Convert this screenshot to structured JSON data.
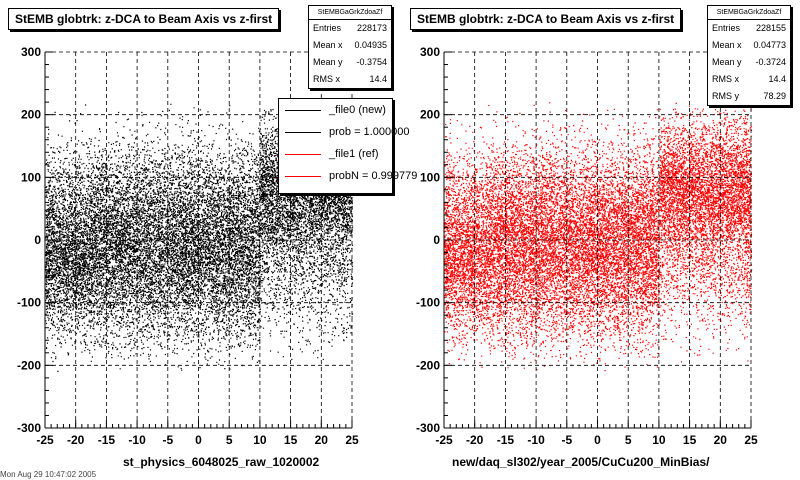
{
  "chart_data": [
    {
      "type": "scatter",
      "title": "StEMB globtrk: z-DCA to Beam Axis vs z-first",
      "xlabel": "st_physics_6048025_raw_1020002",
      "xlim": [
        -25,
        25
      ],
      "ylim": [
        -300,
        300
      ],
      "x_ticks": [
        "-25",
        "-20",
        "-15",
        "-10",
        "-5",
        "0",
        "5",
        "10",
        "15",
        "20",
        "25"
      ],
      "y_ticks": [
        "-300",
        "-200",
        "-100",
        "0",
        "100",
        "200",
        "300"
      ],
      "grid": true,
      "series": [
        {
          "name": "_file0 (new)",
          "color": "#000000"
        }
      ],
      "stats": {
        "header": "StEMBGaGrkZdoaZf",
        "rows": [
          {
            "label": "Entries",
            "value": "228173"
          },
          {
            "label": "Mean x",
            "value": "0.04935"
          },
          {
            "label": "Mean y",
            "value": "-0.3754"
          },
          {
            "label": "RMS x",
            "value": "14.4"
          }
        ]
      },
      "legend": [
        {
          "label": "_file0 (new)",
          "color": "#000000"
        },
        {
          "label": "prob = 1.000000",
          "color": "#000000"
        },
        {
          "label": "_file1 (ref)",
          "color": "#ff0000"
        },
        {
          "label": "probN = 0.999779",
          "color": "#ff0000"
        }
      ]
    },
    {
      "type": "scatter",
      "title": "StEMB globtrk: z-DCA to Beam Axis vs z-first",
      "xlabel": "new/daq_sl302/year_2005/CuCu200_MinBias/",
      "xlim": [
        -25,
        25
      ],
      "ylim": [
        -300,
        300
      ],
      "x_ticks": [
        "-25",
        "-20",
        "-15",
        "-10",
        "-5",
        "0",
        "5",
        "10",
        "15",
        "20",
        "25"
      ],
      "y_ticks": [
        "-300",
        "-200",
        "-100",
        "0",
        "100",
        "200",
        "300"
      ],
      "grid": true,
      "series": [
        {
          "name": "_file1 (ref)",
          "color": "#ff0000"
        }
      ],
      "stats": {
        "header": "StEMBGaGrkZdoaZf",
        "rows": [
          {
            "label": "Entries",
            "value": "228155"
          },
          {
            "label": "Mean x",
            "value": "0.04773"
          },
          {
            "label": "Mean y",
            "value": "-0.3724"
          },
          {
            "label": "RMS x",
            "value": "14.4"
          },
          {
            "label": "RMS y",
            "value": "78.29"
          }
        ]
      }
    }
  ],
  "footer": "Mon Aug 29 10:47:02 2005"
}
